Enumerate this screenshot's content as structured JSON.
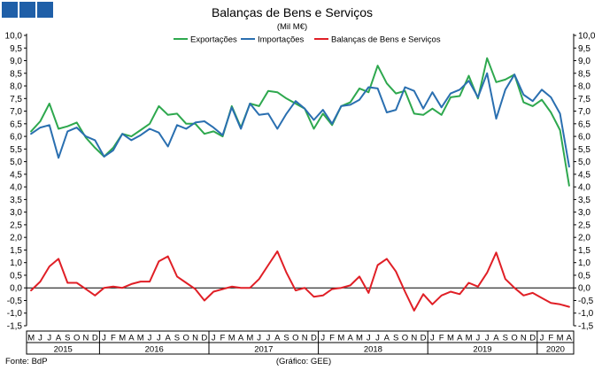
{
  "logo": {
    "icon": "three-blue-squares-logo",
    "color": "#1f5fa8"
  },
  "footer": {
    "source": "Fonte: BdP",
    "credit": "(Gráfico: GEE)"
  },
  "chart_data": {
    "type": "line",
    "title": "Balanças de Bens e Serviços",
    "subtitle": "(Mil M€)",
    "xlabel": "",
    "ylabel": "",
    "ylim": [
      -1.5,
      10.0
    ],
    "y_ticks": [
      "10,0",
      "9,5",
      "9,0",
      "8,5",
      "8,0",
      "7,5",
      "7,0",
      "6,5",
      "6,0",
      "5,5",
      "5,0",
      "4,5",
      "4,0",
      "3,5",
      "3,0",
      "2,5",
      "2,0",
      "1,5",
      "1,0",
      "0,5",
      "0,0",
      "-0,5",
      "-1,0",
      "-1,5"
    ],
    "grid": false,
    "legend_position": "top",
    "categories": [
      "M",
      "J",
      "J",
      "A",
      "S",
      "O",
      "N",
      "D",
      "J",
      "F",
      "M",
      "A",
      "M",
      "J",
      "J",
      "A",
      "S",
      "O",
      "N",
      "D",
      "J",
      "F",
      "M",
      "A",
      "M",
      "J",
      "J",
      "A",
      "S",
      "O",
      "N",
      "D",
      "J",
      "F",
      "M",
      "A",
      "M",
      "J",
      "J",
      "A",
      "S",
      "O",
      "N",
      "D",
      "J",
      "F",
      "M",
      "A",
      "M",
      "J",
      "J",
      "A",
      "S",
      "O",
      "N",
      "D",
      "J",
      "F",
      "M",
      "A"
    ],
    "years": [
      {
        "label": "2015",
        "start": 0,
        "end": 7
      },
      {
        "label": "2016",
        "start": 8,
        "end": 19
      },
      {
        "label": "2017",
        "start": 20,
        "end": 31
      },
      {
        "label": "2018",
        "start": 32,
        "end": 43
      },
      {
        "label": "2019",
        "start": 44,
        "end": 55
      },
      {
        "label": "2020",
        "start": 56,
        "end": 59
      }
    ],
    "series": [
      {
        "name": "Exportações",
        "color": "#2ea84e",
        "values": [
          6.2,
          6.6,
          7.3,
          6.3,
          6.4,
          6.55,
          5.95,
          5.55,
          5.2,
          5.55,
          6.1,
          6.0,
          6.25,
          6.5,
          7.2,
          6.85,
          6.9,
          6.5,
          6.5,
          6.1,
          6.2,
          6.0,
          7.2,
          6.35,
          7.3,
          7.2,
          7.8,
          7.75,
          7.5,
          7.3,
          7.1,
          6.3,
          6.9,
          6.45,
          7.2,
          7.35,
          7.9,
          7.75,
          8.8,
          8.1,
          7.7,
          7.8,
          6.9,
          6.85,
          7.1,
          6.85,
          7.55,
          7.6,
          8.4,
          7.5,
          9.1,
          8.15,
          8.25,
          8.45,
          7.35,
          7.2,
          7.45,
          6.95,
          6.25,
          4.05
        ]
      },
      {
        "name": "Importações",
        "color": "#2a6fb0",
        "values": [
          6.1,
          6.35,
          6.45,
          5.15,
          6.2,
          6.35,
          6.0,
          5.85,
          5.2,
          5.45,
          6.1,
          5.85,
          6.05,
          6.3,
          6.15,
          5.6,
          6.45,
          6.3,
          6.55,
          6.6,
          6.35,
          6.05,
          7.15,
          6.3,
          7.3,
          6.85,
          6.9,
          6.3,
          6.9,
          7.4,
          7.1,
          6.65,
          7.05,
          6.5,
          7.2,
          7.25,
          7.45,
          7.95,
          7.9,
          6.95,
          7.05,
          7.95,
          7.8,
          7.1,
          7.75,
          7.15,
          7.7,
          7.85,
          8.2,
          7.55,
          8.5,
          6.7,
          7.85,
          8.45,
          7.65,
          7.4,
          7.85,
          7.55,
          6.9,
          4.8
        ]
      },
      {
        "name": "Balanças de Bens e Serviços",
        "color": "#e01f26",
        "values": [
          -0.1,
          0.25,
          0.85,
          1.15,
          0.2,
          0.2,
          -0.05,
          -0.3,
          0.0,
          0.05,
          0.0,
          0.15,
          0.25,
          0.25,
          1.05,
          1.25,
          0.45,
          0.2,
          -0.05,
          -0.5,
          -0.15,
          -0.05,
          0.05,
          0.0,
          0.0,
          0.35,
          0.9,
          1.45,
          0.6,
          -0.1,
          0.0,
          -0.35,
          -0.3,
          -0.05,
          0.0,
          0.1,
          0.45,
          -0.2,
          0.9,
          1.15,
          0.65,
          -0.15,
          -0.9,
          -0.25,
          -0.65,
          -0.3,
          -0.15,
          -0.25,
          0.2,
          0.05,
          0.6,
          1.4,
          0.35,
          0.0,
          -0.3,
          -0.2,
          -0.4,
          -0.6,
          -0.65,
          -0.75
        ]
      }
    ]
  }
}
